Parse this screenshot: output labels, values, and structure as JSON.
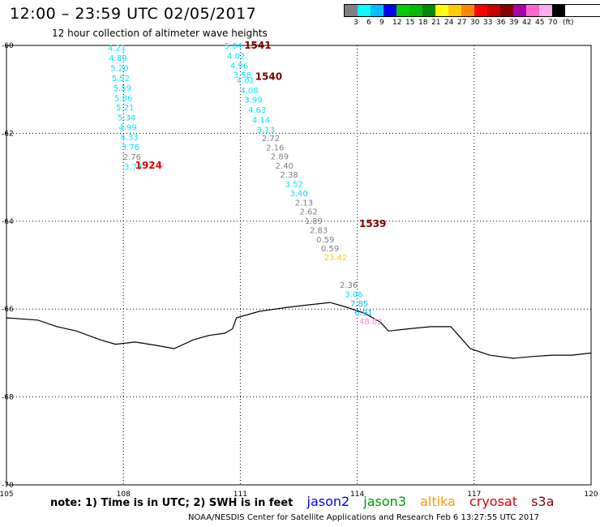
{
  "header": {
    "title": "12:00 – 23:59 UTC 02/05/2017",
    "subtitle": "12 hour collection of altimeter wave heights"
  },
  "legend": {
    "unit": "(ft)",
    "ticks": [
      "3",
      "6",
      "9",
      "12",
      "15",
      "18",
      "21",
      "24",
      "27",
      "30",
      "33",
      "36",
      "39",
      "42",
      "45",
      "70"
    ],
    "colors": [
      "#808080",
      "#00ffff",
      "#00bfff",
      "#0000ff",
      "#00cc00",
      "#00bb00",
      "#008800",
      "#ffff00",
      "#ffcc00",
      "#ff8800",
      "#ff0000",
      "#cc0000",
      "#880000",
      "#aa00aa",
      "#ff66cc",
      "#ffaaee",
      "#000000"
    ]
  },
  "map": {
    "lon_range": [
      105,
      120
    ],
    "lat_range": [
      -70,
      -60
    ],
    "lon_labels": [
      "105",
      "108",
      "111",
      "114",
      "117",
      "120"
    ],
    "lat_labels": [
      "-60",
      "-62",
      "-64",
      "-66",
      "-68",
      "-70"
    ],
    "coastline": [
      [
        105,
        -66.2
      ],
      [
        105.8,
        -66.25
      ],
      [
        106.3,
        -66.4
      ],
      [
        106.8,
        -66.5
      ],
      [
        107.4,
        -66.7
      ],
      [
        107.8,
        -66.8
      ],
      [
        108.3,
        -66.75
      ],
      [
        108.8,
        -66.82
      ],
      [
        109.3,
        -66.9
      ],
      [
        109.8,
        -66.7
      ],
      [
        110.2,
        -66.6
      ],
      [
        110.6,
        -66.55
      ],
      [
        110.8,
        -66.45
      ],
      [
        110.9,
        -66.2
      ],
      [
        111.5,
        -66.05
      ],
      [
        112.3,
        -65.95
      ],
      [
        113.3,
        -65.85
      ],
      [
        113.7,
        -65.95
      ],
      [
        114.2,
        -66.1
      ],
      [
        114.6,
        -66.3
      ],
      [
        114.8,
        -66.5
      ],
      [
        115.3,
        -66.45
      ],
      [
        115.9,
        -66.4
      ],
      [
        116.4,
        -66.4
      ],
      [
        116.6,
        -66.6
      ],
      [
        116.9,
        -66.9
      ],
      [
        117.4,
        -67.05
      ],
      [
        118.0,
        -67.12
      ],
      [
        118.5,
        -67.08
      ],
      [
        119.0,
        -67.05
      ],
      [
        119.5,
        -67.05
      ],
      [
        120,
        -67.0
      ]
    ],
    "observations": [
      {
        "lon": 107.6,
        "lat": -60.12,
        "value": "4.21",
        "color": "#00e5ff"
      },
      {
        "lon": 107.63,
        "lat": -60.35,
        "value": "4.89",
        "color": "#00e5ff"
      },
      {
        "lon": 107.67,
        "lat": -60.58,
        "value": "5.20",
        "color": "#00e5ff"
      },
      {
        "lon": 107.7,
        "lat": -60.81,
        "value": "5.52",
        "color": "#00e5ff"
      },
      {
        "lon": 107.74,
        "lat": -61.03,
        "value": "5.59",
        "color": "#00e5ff"
      },
      {
        "lon": 107.77,
        "lat": -61.26,
        "value": "5.86",
        "color": "#00e5ff"
      },
      {
        "lon": 107.81,
        "lat": -61.48,
        "value": "5.21",
        "color": "#00e5ff"
      },
      {
        "lon": 107.85,
        "lat": -61.71,
        "value": "5.34",
        "color": "#00e5ff"
      },
      {
        "lon": 107.88,
        "lat": -61.93,
        "value": "4.99",
        "color": "#00e5ff"
      },
      {
        "lon": 107.92,
        "lat": -62.15,
        "value": "4.33",
        "color": "#00e5ff"
      },
      {
        "lon": 107.95,
        "lat": -62.38,
        "value": "3.76",
        "color": "#00e5ff"
      },
      {
        "lon": 107.99,
        "lat": -62.6,
        "value": "2.76",
        "color": "#808080"
      },
      {
        "lon": 108.02,
        "lat": -62.82,
        "value": "3.73",
        "color": "#00e5ff"
      },
      {
        "lon": 110.59,
        "lat": -60.07,
        "value": "5.04",
        "color": "#00e5ff"
      },
      {
        "lon": 110.66,
        "lat": -60.3,
        "value": "4.02",
        "color": "#00e5ff"
      },
      {
        "lon": 110.74,
        "lat": -60.53,
        "value": "4.96",
        "color": "#00e5ff"
      },
      {
        "lon": 110.82,
        "lat": -60.74,
        "value": "3.58",
        "color": "#00e5ff"
      },
      {
        "lon": 110.9,
        "lat": -60.86,
        "value": "4.01",
        "color": "#00e5ff"
      },
      {
        "lon": 111.0,
        "lat": -61.09,
        "value": "4.08",
        "color": "#00e5ff"
      },
      {
        "lon": 111.1,
        "lat": -61.3,
        "value": "3.99",
        "color": "#00e5ff"
      },
      {
        "lon": 111.2,
        "lat": -61.53,
        "value": "4.63",
        "color": "#00e5ff"
      },
      {
        "lon": 111.3,
        "lat": -61.76,
        "value": "4.14",
        "color": "#00e5ff"
      },
      {
        "lon": 111.42,
        "lat": -61.98,
        "value": "3.13",
        "color": "#00e5ff"
      },
      {
        "lon": 111.55,
        "lat": -62.18,
        "value": "2.72",
        "color": "#808080"
      },
      {
        "lon": 111.66,
        "lat": -62.39,
        "value": "2.16",
        "color": "#808080"
      },
      {
        "lon": 111.78,
        "lat": -62.59,
        "value": "2.89",
        "color": "#808080"
      },
      {
        "lon": 111.9,
        "lat": -62.8,
        "value": "2.40",
        "color": "#808080"
      },
      {
        "lon": 112.02,
        "lat": -63.01,
        "value": "2.38",
        "color": "#808080"
      },
      {
        "lon": 112.15,
        "lat": -63.22,
        "value": "3.52",
        "color": "#00e5ff"
      },
      {
        "lon": 112.27,
        "lat": -63.43,
        "value": "3.40",
        "color": "#00e5ff"
      },
      {
        "lon": 112.4,
        "lat": -63.64,
        "value": "2.13",
        "color": "#808080"
      },
      {
        "lon": 112.52,
        "lat": -63.85,
        "value": "2.62",
        "color": "#808080"
      },
      {
        "lon": 112.65,
        "lat": -64.06,
        "value": "1.89",
        "color": "#808080"
      },
      {
        "lon": 112.78,
        "lat": -64.27,
        "value": "2.83",
        "color": "#808080"
      },
      {
        "lon": 112.95,
        "lat": -64.48,
        "value": "0.59",
        "color": "#808080"
      },
      {
        "lon": 113.07,
        "lat": -64.69,
        "value": "0.59",
        "color": "#808080"
      },
      {
        "lon": 113.15,
        "lat": -64.89,
        "value": "23.42",
        "color": "#ffcc00"
      },
      {
        "lon": 113.55,
        "lat": -65.52,
        "value": "2.36",
        "color": "#808080"
      },
      {
        "lon": 113.68,
        "lat": -65.73,
        "value": "3.06",
        "color": "#00e5ff"
      },
      {
        "lon": 113.82,
        "lat": -65.94,
        "value": "7.85",
        "color": "#00bfff"
      },
      {
        "lon": 113.93,
        "lat": -66.14,
        "value": "6.91",
        "color": "#00bfff"
      },
      {
        "lon": 114.05,
        "lat": -66.35,
        "value": "48.82",
        "color": "#ff88dd"
      }
    ],
    "time_labels": [
      {
        "lon": 108.3,
        "lat": -62.8,
        "text": "1924",
        "color": "#ee0000"
      },
      {
        "lon": 111.1,
        "lat": -60.07,
        "text": "1541",
        "color": "#770000"
      },
      {
        "lon": 111.38,
        "lat": -60.78,
        "text": "1540",
        "color": "#770000"
      },
      {
        "lon": 114.05,
        "lat": -64.13,
        "text": "1539",
        "color": "#770000"
      }
    ]
  },
  "footer": {
    "note": "note: 1) Time is in UTC; 2) SWH is in feet",
    "satellites": [
      {
        "name": "jason2",
        "color": "#0000ee"
      },
      {
        "name": "jason3",
        "color": "#009900"
      },
      {
        "name": "altika",
        "color": "#ff9900"
      },
      {
        "name": "cryosat",
        "color": "#dd0000"
      },
      {
        "name": "s3a",
        "color": "#880000"
      }
    ],
    "credit": "NOAA/NESDIS Center for Satellite Applications and Research    Feb  6 13:27:55 UTC 2017"
  }
}
